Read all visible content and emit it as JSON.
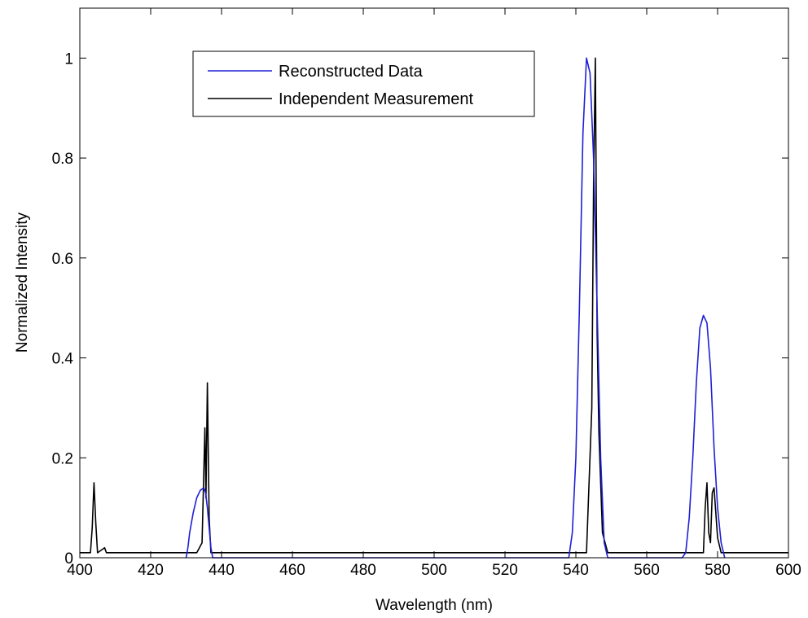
{
  "colors": {
    "reconstructed": "#1f1fd6",
    "independent": "#000000",
    "axes": "#000000",
    "background": "#ffffff"
  },
  "chart_data": {
    "type": "line",
    "title": "",
    "xlabel": "Wavelength (nm)",
    "ylabel": "Normalized Intensity",
    "xlim": [
      400,
      600
    ],
    "ylim": [
      0,
      1.1
    ],
    "xticks": [
      400,
      420,
      440,
      460,
      480,
      500,
      520,
      540,
      560,
      580,
      600
    ],
    "yticks": [
      0,
      0.2,
      0.4,
      0.6,
      0.8,
      1
    ],
    "ytick_labels": [
      "0",
      "0.2",
      "0.4",
      "0.6",
      "0.8",
      "1"
    ],
    "grid": false,
    "legend": "top-left, boxed",
    "series": [
      {
        "name": "Reconstructed Data",
        "color": "#1f1fd6",
        "points": [
          [
            430,
            0.0
          ],
          [
            430.5,
            0.02
          ],
          [
            431,
            0.05
          ],
          [
            432,
            0.09
          ],
          [
            433,
            0.12
          ],
          [
            434,
            0.135
          ],
          [
            435,
            0.14
          ],
          [
            435.5,
            0.13
          ],
          [
            436,
            0.1
          ],
          [
            436.5,
            0.06
          ],
          [
            437,
            0.02
          ],
          [
            437.5,
            0.0
          ],
          [
            538,
            0.0
          ],
          [
            539,
            0.05
          ],
          [
            540,
            0.2
          ],
          [
            541,
            0.5
          ],
          [
            542,
            0.85
          ],
          [
            543,
            1.0
          ],
          [
            544,
            0.97
          ],
          [
            545,
            0.8
          ],
          [
            546,
            0.5
          ],
          [
            547,
            0.2
          ],
          [
            548,
            0.03
          ],
          [
            549,
            0.0
          ],
          [
            570,
            0.0
          ],
          [
            571,
            0.01
          ],
          [
            572,
            0.08
          ],
          [
            573,
            0.2
          ],
          [
            574,
            0.35
          ],
          [
            575,
            0.46
          ],
          [
            576,
            0.485
          ],
          [
            577,
            0.47
          ],
          [
            578,
            0.38
          ],
          [
            579,
            0.22
          ],
          [
            580,
            0.1
          ],
          [
            581,
            0.03
          ],
          [
            582,
            0.0
          ]
        ]
      },
      {
        "name": "Independent Measurement",
        "color": "#000000",
        "points": [
          [
            400,
            0.01
          ],
          [
            403,
            0.01
          ],
          [
            403.5,
            0.06
          ],
          [
            404,
            0.15
          ],
          [
            404.5,
            0.07
          ],
          [
            405,
            0.01
          ],
          [
            407,
            0.02
          ],
          [
            407.5,
            0.01
          ],
          [
            433,
            0.01
          ],
          [
            434.5,
            0.03
          ],
          [
            435.3,
            0.26
          ],
          [
            435.6,
            0.12
          ],
          [
            436,
            0.35
          ],
          [
            436.5,
            0.08
          ],
          [
            437,
            0.01
          ],
          [
            543,
            0.01
          ],
          [
            544.5,
            0.3
          ],
          [
            545,
            0.75
          ],
          [
            545.5,
            1.0
          ],
          [
            546,
            0.45
          ],
          [
            546.5,
            0.25
          ],
          [
            547.5,
            0.05
          ],
          [
            549,
            0.01
          ],
          [
            576,
            0.01
          ],
          [
            576.5,
            0.1
          ],
          [
            577,
            0.15
          ],
          [
            577.5,
            0.05
          ],
          [
            578,
            0.03
          ],
          [
            578.5,
            0.13
          ],
          [
            579,
            0.14
          ],
          [
            580,
            0.04
          ],
          [
            581,
            0.01
          ],
          [
            600,
            0.01
          ]
        ]
      }
    ]
  }
}
